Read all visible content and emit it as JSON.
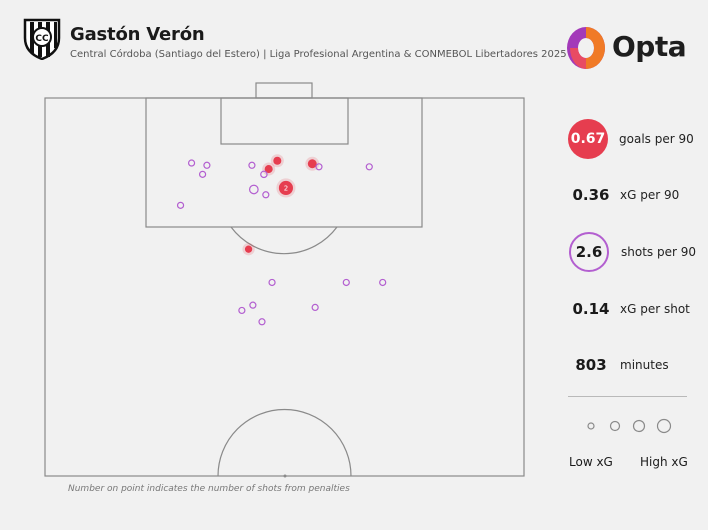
{
  "header": {
    "player_name": "Gastón Verón",
    "subtitle": "Central Córdoba (Santiago del Estero) | Liga Profesional Argentina & CONMEBOL Libertadores 2025",
    "brand": "Opta",
    "crest_icon": "central-cordoba-crest",
    "brand_icon": "opta-logo"
  },
  "stats": {
    "goals_per_90": {
      "value": "0.67",
      "label": "goals per 90"
    },
    "xg_per_90": {
      "value": "0.36",
      "label": "xG per 90"
    },
    "shots_per_90": {
      "value": "2.6",
      "label": "shots per 90"
    },
    "xg_per_shot": {
      "value": "0.14",
      "label": "xG per shot"
    },
    "minutes": {
      "value": "803",
      "label": "minutes"
    }
  },
  "legend": {
    "low": "Low xG",
    "high": "High xG"
  },
  "footnote": "Number on point indicates the number of shots from penalties",
  "colors": {
    "goal": "#e63d4f",
    "shot": "#b35fd0",
    "pitch_line": "#8a8a8a",
    "background": "#f1f1f1"
  },
  "chart_data": {
    "type": "scatter",
    "title": "Gastón Verón",
    "xlabel": "",
    "ylabel": "",
    "xlim": [
      0,
      100
    ],
    "ylim": [
      50,
      100
    ],
    "x_description": "pitch width, 0 = left touchline, 100 = right touchline",
    "y_description": "pitch length, 100 = goal line attacked",
    "size_description": "marker size encodes xG of the shot",
    "series": [
      {
        "name": "goal",
        "color": "#e63d4f",
        "points": [
          {
            "x": 48.5,
            "y": 91.7,
            "xg": 0.12
          },
          {
            "x": 46.7,
            "y": 90.6,
            "xg": 0.12
          },
          {
            "x": 55.8,
            "y": 91.3,
            "xg": 0.18
          },
          {
            "x": 50.3,
            "y": 88.1,
            "xg": 0.76,
            "penalties": "2"
          },
          {
            "x": 42.5,
            "y": 80.0,
            "xg": 0.08
          }
        ]
      },
      {
        "name": "shot",
        "color": "#b35fd0",
        "points": [
          {
            "x": 30.6,
            "y": 91.4,
            "xg": 0.03
          },
          {
            "x": 33.8,
            "y": 91.1,
            "xg": 0.03
          },
          {
            "x": 43.2,
            "y": 91.1,
            "xg": 0.03
          },
          {
            "x": 57.2,
            "y": 90.9,
            "xg": 0.03
          },
          {
            "x": 67.7,
            "y": 90.9,
            "xg": 0.03
          },
          {
            "x": 32.9,
            "y": 89.9,
            "xg": 0.03
          },
          {
            "x": 45.7,
            "y": 89.9,
            "xg": 0.04
          },
          {
            "x": 43.6,
            "y": 87.9,
            "xg": 0.15
          },
          {
            "x": 46.1,
            "y": 87.2,
            "xg": 0.03
          },
          {
            "x": 28.3,
            "y": 85.8,
            "xg": 0.03
          },
          {
            "x": 47.4,
            "y": 75.6,
            "xg": 0.03
          },
          {
            "x": 62.9,
            "y": 75.6,
            "xg": 0.03
          },
          {
            "x": 70.5,
            "y": 75.6,
            "xg": 0.03
          },
          {
            "x": 43.4,
            "y": 72.6,
            "xg": 0.03
          },
          {
            "x": 56.4,
            "y": 72.3,
            "xg": 0.03
          },
          {
            "x": 41.1,
            "y": 71.9,
            "xg": 0.03
          },
          {
            "x": 45.3,
            "y": 70.4,
            "xg": 0.03
          }
        ]
      }
    ]
  }
}
